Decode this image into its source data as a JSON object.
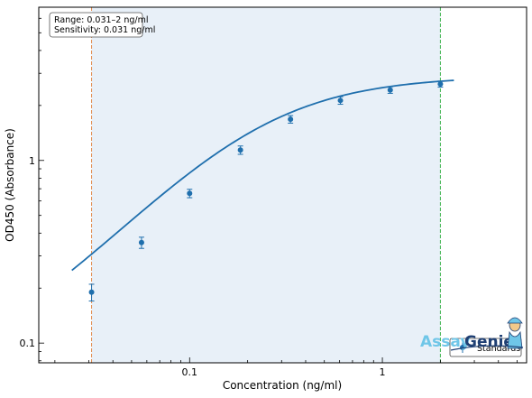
{
  "chart_data": {
    "type": "scatter",
    "xscale": "log",
    "yscale": "log",
    "xlim": [
      0.0165,
      5.6
    ],
    "ylim": [
      0.078,
      6.9
    ],
    "xlabel": "Concentration (ng/ml)",
    "ylabel": "OD450 (Absorbance)",
    "x_ticks": [
      0.1,
      1
    ],
    "x_tick_labels": [
      "0.1",
      "1"
    ],
    "y_ticks": [
      0.1,
      1
    ],
    "y_tick_labels": [
      "0.1",
      "1"
    ],
    "info_box": {
      "line1": "Range: 0.031–2 ng/ml",
      "line2": "Sensitivity: 0.031 ng/ml"
    },
    "range_lines": [
      0.031,
      2
    ],
    "range_shading": [
      0.031,
      2
    ],
    "series": [
      {
        "name": "Standards",
        "x": [
          0.031,
          0.0563,
          0.1,
          0.1835,
          0.3337,
          0.6058,
          1.0983,
          2.0
        ],
        "y": [
          0.19,
          0.355,
          0.66,
          1.14,
          1.68,
          2.13,
          2.43,
          2.62
        ],
        "err": [
          0.02,
          0.025,
          0.035,
          0.06,
          0.08,
          0.1,
          0.1,
          0.1
        ]
      }
    ],
    "fit_curve": {
      "x_range": [
        0.0245,
        2.35
      ],
      "model": "4PL",
      "params": {
        "bottom": 0.06,
        "top": 2.9,
        "ec50": 0.22,
        "hill": 1.2
      }
    },
    "legend": {
      "label": "Standards",
      "position": "bottom-right"
    },
    "colors": {
      "series": "#1f6fad",
      "left_line": "#e08a4c",
      "right_line": "#3fb34f",
      "shade": "#e8f0f8"
    }
  },
  "branding": {
    "text_assay": "Assay",
    "text_genie": "Genie"
  }
}
